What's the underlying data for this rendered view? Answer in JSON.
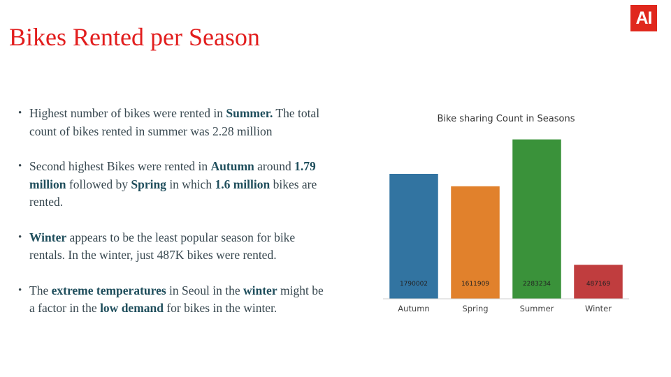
{
  "slide": {
    "title": "Bikes Rented per Season",
    "logo_text": "AI",
    "bullets": [
      [
        {
          "t": "Highest number of bikes were rented in ",
          "b": false
        },
        {
          "t": "Summer.",
          "b": true
        },
        {
          "t": " The total count of bikes rented in summer was 2.28 million",
          "b": false
        }
      ],
      [
        {
          "t": "Second highest Bikes were rented in ",
          "b": false
        },
        {
          "t": "Autumn",
          "b": true
        },
        {
          "t": " around ",
          "b": false
        },
        {
          "t": "1.79 million",
          "b": true
        },
        {
          "t": " followed by ",
          "b": false
        },
        {
          "t": "Spring",
          "b": true
        },
        {
          "t": " in which ",
          "b": false
        },
        {
          "t": "1.6 million",
          "b": true
        },
        {
          "t": " bikes are rented.",
          "b": false
        }
      ],
      [
        {
          "t": "Winter",
          "b": true
        },
        {
          "t": " appears to be the least popular season for bike rentals. In the winter, just 487K bikes were rented.",
          "b": false
        }
      ],
      [
        {
          "t": "The ",
          "b": false
        },
        {
          "t": "extreme temperatures",
          "b": true
        },
        {
          "t": " in Seoul in the ",
          "b": false
        },
        {
          "t": "winter",
          "b": true
        },
        {
          "t": " might be a factor in the ",
          "b": false
        },
        {
          "t": "low demand",
          "b": true
        },
        {
          "t": " for bikes in the winter.",
          "b": false
        }
      ]
    ]
  },
  "colors": {
    "title": "#e21e1e",
    "logo_bg": "#e0281d",
    "bold_text": "#1f4e5c",
    "bars": [
      "#3274a1",
      "#e1812c",
      "#3a923a",
      "#c03d3e"
    ]
  },
  "chart_data": {
    "type": "bar",
    "title": "Bike sharing Count in Seasons",
    "xlabel": "",
    "ylabel": "",
    "categories": [
      "Autumn",
      "Spring",
      "Summer",
      "Winter"
    ],
    "values": [
      1790002,
      1611909,
      2283234,
      487169
    ],
    "data_labels": [
      "1790002",
      "1611909",
      "2283234",
      "487169"
    ],
    "ylim": [
      0,
      2400000
    ],
    "grid": false,
    "legend": "none"
  }
}
